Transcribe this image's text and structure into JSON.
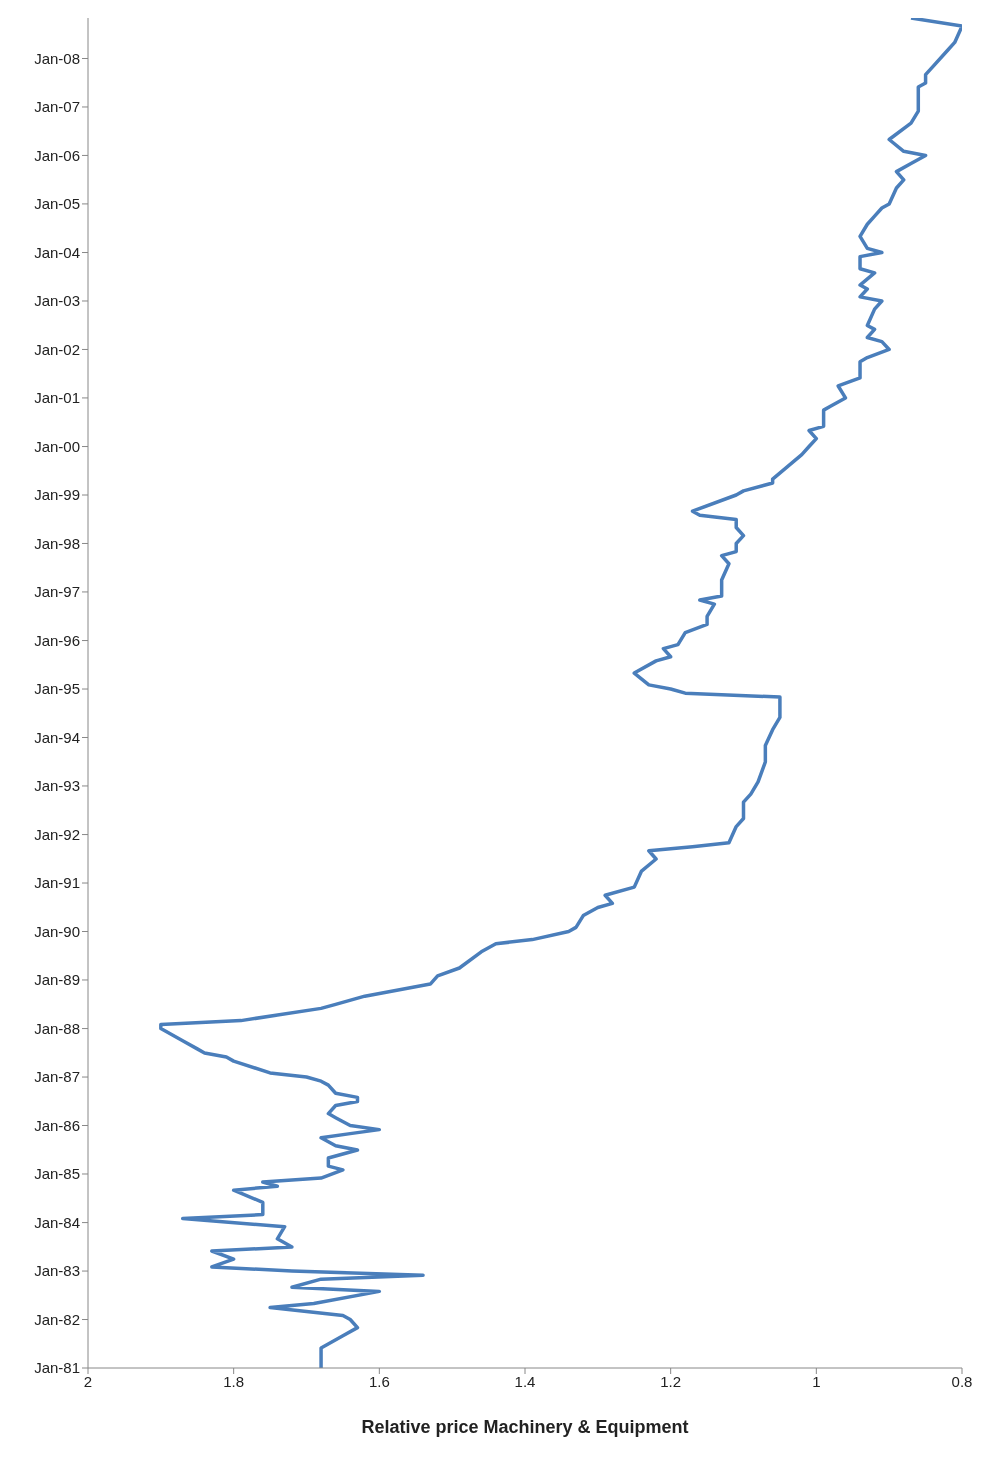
{
  "chart_data": {
    "type": "line",
    "orientation": "horizontal",
    "xlabel": "Relative price Machinery & Equipment",
    "color": "#4a7ebb",
    "line_style": "solid",
    "marker": "none",
    "legend": false,
    "grid": false,
    "xlim": [
      2,
      0.8
    ],
    "xticks": [
      {
        "value": 2,
        "label": "2"
      },
      {
        "value": 1.8,
        "label": "1.8"
      },
      {
        "value": 1.6,
        "label": "1.6"
      },
      {
        "value": 1.4,
        "label": "1.4"
      },
      {
        "value": 1.2,
        "label": "1.2"
      },
      {
        "value": 1,
        "label": "1"
      },
      {
        "value": 0.8,
        "label": "0.8"
      }
    ],
    "ylim": [
      "1981-01",
      "2008-11"
    ],
    "yticks": [
      {
        "value": "1981-01",
        "label": "Jan-81"
      },
      {
        "value": "1982-01",
        "label": "Jan-82"
      },
      {
        "value": "1983-01",
        "label": "Jan-83"
      },
      {
        "value": "1984-01",
        "label": "Jan-84"
      },
      {
        "value": "1985-01",
        "label": "Jan-85"
      },
      {
        "value": "1986-01",
        "label": "Jan-86"
      },
      {
        "value": "1987-01",
        "label": "Jan-87"
      },
      {
        "value": "1988-01",
        "label": "Jan-88"
      },
      {
        "value": "1989-01",
        "label": "Jan-89"
      },
      {
        "value": "1990-01",
        "label": "Jan-90"
      },
      {
        "value": "1991-01",
        "label": "Jan-91"
      },
      {
        "value": "1992-01",
        "label": "Jan-92"
      },
      {
        "value": "1993-01",
        "label": "Jan-93"
      },
      {
        "value": "1994-01",
        "label": "Jan-94"
      },
      {
        "value": "1995-01",
        "label": "Jan-95"
      },
      {
        "value": "1996-01",
        "label": "Jan-96"
      },
      {
        "value": "1997-01",
        "label": "Jan-97"
      },
      {
        "value": "1998-01",
        "label": "Jan-98"
      },
      {
        "value": "1999-01",
        "label": "Jan-99"
      },
      {
        "value": "2000-01",
        "label": "Jan-00"
      },
      {
        "value": "2001-01",
        "label": "Jan-01"
      },
      {
        "value": "2002-01",
        "label": "Jan-02"
      },
      {
        "value": "2003-01",
        "label": "Jan-03"
      },
      {
        "value": "2004-01",
        "label": "Jan-04"
      },
      {
        "value": "2005-01",
        "label": "Jan-05"
      },
      {
        "value": "2006-01",
        "label": "Jan-06"
      },
      {
        "value": "2007-01",
        "label": "Jan-07"
      },
      {
        "value": "2008-01",
        "label": "Jan-08"
      }
    ],
    "x": [
      "1981-01",
      "1981-02",
      "1981-06",
      "1981-09",
      "1981-11",
      "1982-01",
      "1982-02",
      "1982-04",
      "1982-05",
      "1982-08",
      "1982-09",
      "1982-11",
      "1982-12",
      "1983-01",
      "1983-02",
      "1983-04",
      "1983-06",
      "1983-07",
      "1983-09",
      "1983-12",
      "1984-02",
      "1984-03",
      "1984-06",
      "1984-09",
      "1984-10",
      "1984-11",
      "1984-12",
      "1985-02",
      "1985-03",
      "1985-05",
      "1985-07",
      "1985-08",
      "1985-10",
      "1985-11",
      "1985-12",
      "1986-01",
      "1986-03",
      "1986-04",
      "1986-06",
      "1986-07",
      "1986-08",
      "1986-09",
      "1986-11",
      "1986-12",
      "1987-01",
      "1987-02",
      "1987-05",
      "1987-06",
      "1987-07",
      "1987-08",
      "1987-10",
      "1988-01",
      "1988-02",
      "1988-03",
      "1988-06",
      "1988-07",
      "1988-09",
      "1988-12",
      "1989-02",
      "1989-04",
      "1989-08",
      "1989-10",
      "1989-11",
      "1990-01",
      "1990-02",
      "1990-05",
      "1990-07",
      "1990-08",
      "1990-10",
      "1990-12",
      "1991-04",
      "1991-07",
      "1991-09",
      "1991-10",
      "1991-11",
      "1992-03",
      "1992-05",
      "1992-09",
      "1992-11",
      "1993-02",
      "1993-07",
      "1993-11",
      "1994-03",
      "1994-06",
      "1994-09",
      "1994-11",
      "1994-12",
      "1995-01",
      "1995-02",
      "1995-05",
      "1995-08",
      "1995-09",
      "1995-11",
      "1995-12",
      "1996-03",
      "1996-05",
      "1996-07",
      "1996-10",
      "1996-11",
      "1996-12",
      "1997-04",
      "1997-08",
      "1997-10",
      "1997-11",
      "1998-01",
      "1998-03",
      "1998-05",
      "1998-07",
      "1998-08",
      "1998-09",
      "1999-01",
      "1999-02",
      "1999-04",
      "1999-05",
      "1999-08",
      "1999-11",
      "2000-01",
      "2000-03",
      "2000-05",
      "2000-06",
      "2000-10",
      "2000-11",
      "2001-01",
      "2001-04",
      "2001-06",
      "2001-10",
      "2001-11",
      "2002-01",
      "2002-03",
      "2002-04",
      "2002-06",
      "2002-07",
      "2002-11",
      "2003-01",
      "2003-02",
      "2003-04",
      "2003-05",
      "2003-08",
      "2003-09",
      "2003-12",
      "2004-01",
      "2004-02",
      "2004-05",
      "2004-08",
      "2004-10",
      "2004-12",
      "2005-01",
      "2005-05",
      "2005-07",
      "2005-09",
      "2005-11",
      "2006-01",
      "2006-02",
      "2006-05",
      "2006-09",
      "2006-12",
      "2007-02",
      "2007-04",
      "2007-06",
      "2007-07",
      "2007-09",
      "2007-11",
      "2008-03",
      "2008-05",
      "2008-09",
      "2008-11"
    ],
    "values": [
      1.68,
      1.68,
      1.68,
      1.65,
      1.63,
      1.64,
      1.65,
      1.75,
      1.69,
      1.6,
      1.72,
      1.68,
      1.54,
      1.72,
      1.83,
      1.8,
      1.83,
      1.72,
      1.74,
      1.73,
      1.87,
      1.76,
      1.76,
      1.8,
      1.74,
      1.76,
      1.68,
      1.65,
      1.67,
      1.67,
      1.63,
      1.66,
      1.68,
      1.64,
      1.6,
      1.64,
      1.66,
      1.67,
      1.66,
      1.63,
      1.63,
      1.66,
      1.67,
      1.68,
      1.7,
      1.75,
      1.8,
      1.81,
      1.84,
      1.85,
      1.87,
      1.9,
      1.9,
      1.79,
      1.68,
      1.66,
      1.62,
      1.53,
      1.52,
      1.49,
      1.46,
      1.44,
      1.39,
      1.34,
      1.33,
      1.32,
      1.3,
      1.28,
      1.29,
      1.25,
      1.24,
      1.22,
      1.23,
      1.17,
      1.12,
      1.11,
      1.1,
      1.1,
      1.09,
      1.08,
      1.07,
      1.07,
      1.06,
      1.05,
      1.05,
      1.05,
      1.18,
      1.2,
      1.23,
      1.25,
      1.22,
      1.2,
      1.21,
      1.19,
      1.18,
      1.15,
      1.15,
      1.14,
      1.16,
      1.13,
      1.13,
      1.12,
      1.13,
      1.11,
      1.11,
      1.1,
      1.11,
      1.11,
      1.16,
      1.17,
      1.11,
      1.1,
      1.06,
      1.06,
      1.04,
      1.02,
      1.01,
      1,
      1.01,
      0.99,
      0.99,
      0.98,
      0.96,
      0.97,
      0.94,
      0.94,
      0.93,
      0.9,
      0.91,
      0.93,
      0.92,
      0.93,
      0.92,
      0.91,
      0.94,
      0.93,
      0.94,
      0.92,
      0.94,
      0.94,
      0.91,
      0.93,
      0.94,
      0.93,
      0.92,
      0.91,
      0.9,
      0.89,
      0.88,
      0.89,
      0.87,
      0.85,
      0.88,
      0.9,
      0.87,
      0.86,
      0.86,
      0.86,
      0.86,
      0.85,
      0.85,
      0.84,
      0.82,
      0.81,
      0.8,
      0.87
    ]
  }
}
